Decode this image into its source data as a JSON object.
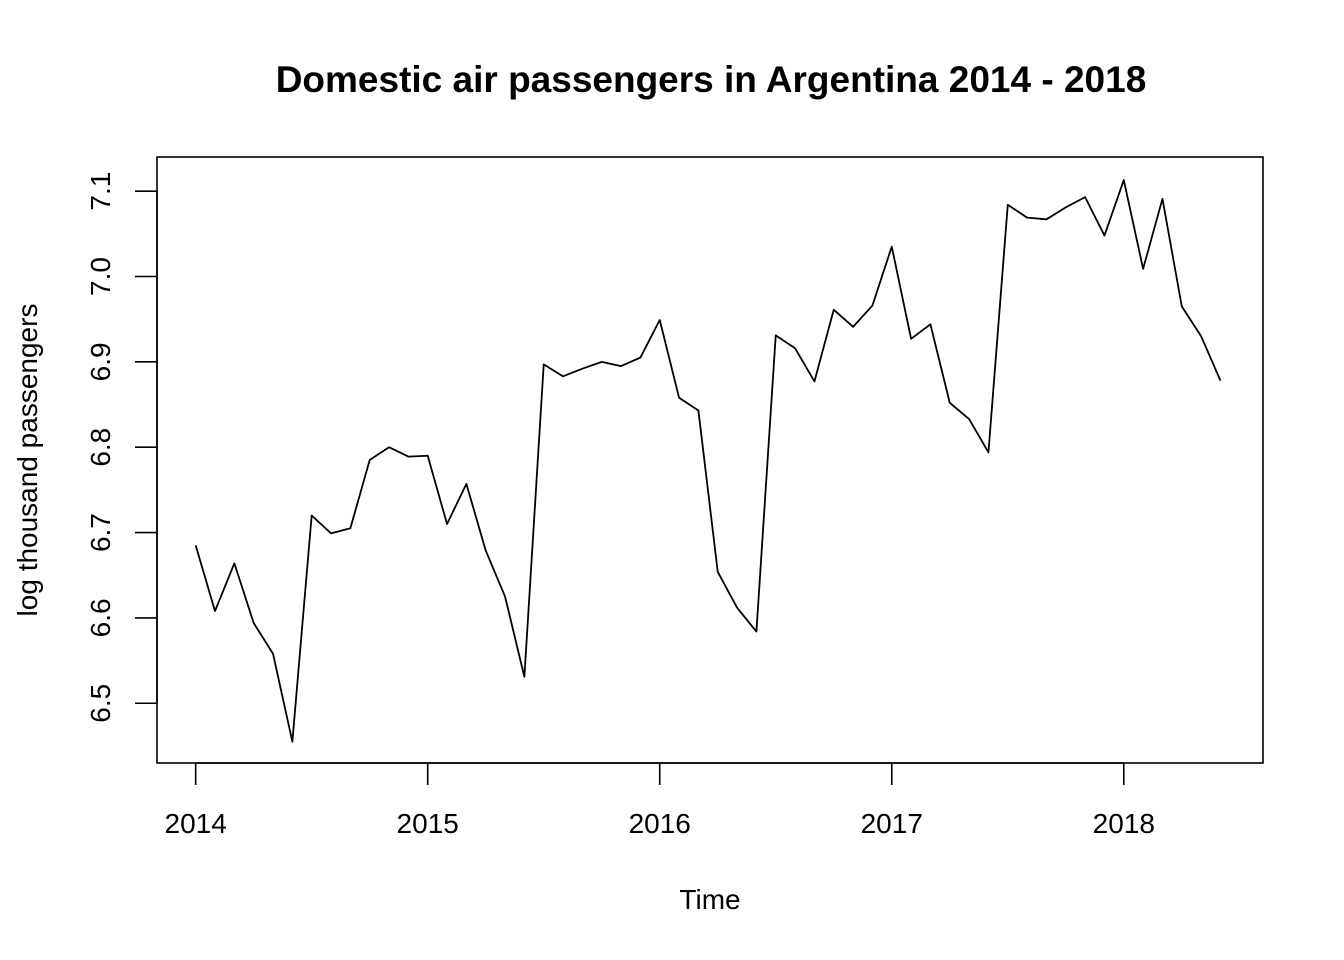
{
  "chart_data": {
    "type": "line",
    "title": "Domestic air passengers in Argentina 2014 - 2018",
    "xlabel": "Time",
    "ylabel": "log thousand passengers",
    "xlim": [
      2013.8333,
      2018.6
    ],
    "ylim": [
      6.43,
      7.14
    ],
    "x_ticks": [
      2014,
      2015,
      2016,
      2017,
      2018
    ],
    "x_tick_labels": [
      "2014",
      "2015",
      "2016",
      "2017",
      "2018"
    ],
    "y_ticks": [
      6.5,
      6.6,
      6.7,
      6.8,
      6.9,
      7.0,
      7.1
    ],
    "y_tick_labels": [
      "6.5",
      "6.6",
      "6.7",
      "6.8",
      "6.9",
      "7.0",
      "7.1"
    ],
    "grid": false,
    "line_color": "#000000",
    "series": [
      {
        "start": 2014,
        "frequency": 12,
        "values": [
          6.685,
          6.608,
          6.664,
          6.594,
          6.558,
          6.455,
          6.72,
          6.699,
          6.705,
          6.785,
          6.8,
          6.789,
          6.79,
          6.71,
          6.757,
          6.679,
          6.625,
          6.531,
          6.897,
          6.883,
          6.892,
          6.9,
          6.895,
          6.905,
          6.949,
          6.858,
          6.843,
          6.654,
          6.612,
          6.584,
          6.931,
          6.916,
          6.877,
          6.961,
          6.941,
          6.966,
          7.035,
          6.927,
          6.944,
          6.852,
          6.833,
          6.794,
          7.084,
          7.069,
          7.067,
          7.081,
          7.093,
          7.048,
          7.113,
          7.009,
          7.091,
          6.965,
          6.93,
          6.878
        ]
      }
    ]
  }
}
